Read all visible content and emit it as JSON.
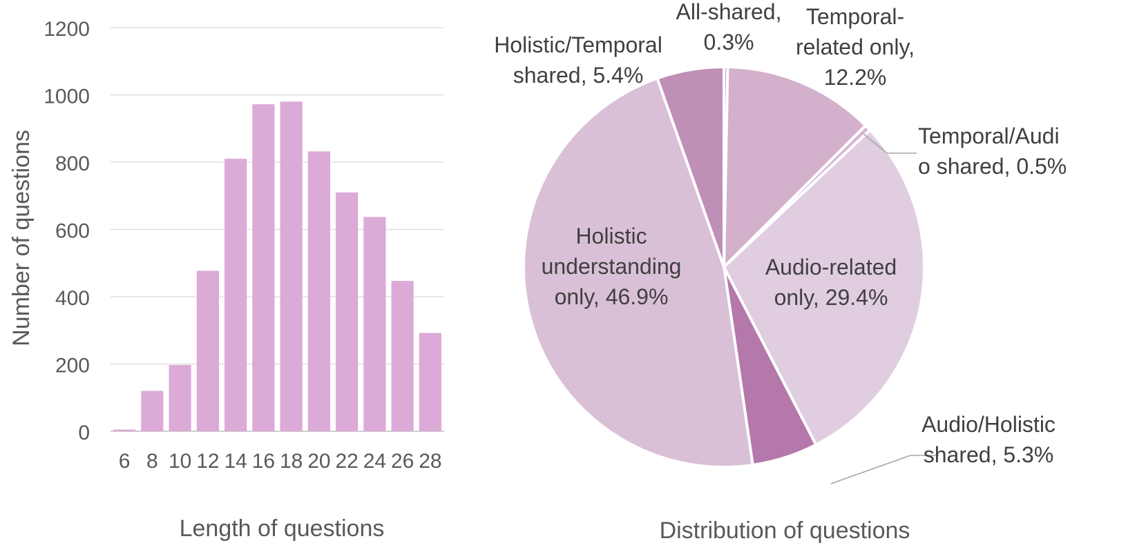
{
  "chart_data": [
    {
      "type": "bar",
      "xlabel": "Length of questions",
      "ylabel": "Number of questions",
      "categories": [
        "6",
        "8",
        "10",
        "12",
        "14",
        "16",
        "18",
        "20",
        "22",
        "24",
        "26",
        "28"
      ],
      "values": [
        5,
        120,
        197,
        477,
        810,
        972,
        980,
        832,
        710,
        637,
        447,
        292
      ],
      "ylim": [
        0,
        1200
      ],
      "yticks": [
        "0",
        "200",
        "400",
        "600",
        "800",
        "1000",
        "1200"
      ],
      "grid": true,
      "bar_color": "#dcaad6"
    },
    {
      "type": "pie",
      "xlabel": "Distribution of questions",
      "start": "top",
      "direction": "clockwise",
      "slices": [
        {
          "label": "All-shared, 0.3%",
          "value": 0.3,
          "color": "#cca0c4"
        },
        {
          "label": "Temporal-related only, 12.2%",
          "value": 12.2,
          "color": "#d3b0cb"
        },
        {
          "label": "Temporal/Audio shared, 0.5%",
          "value": 0.5,
          "color": "#d6b7d0"
        },
        {
          "label": "Audio-related only, 29.4%",
          "value": 29.4,
          "color": "#e0cde0"
        },
        {
          "label": "Audio/Holistic shared, 5.3%",
          "value": 5.3,
          "color": "#b578aa"
        },
        {
          "label": "Holistic understanding only, 46.9%",
          "value": 46.9,
          "color": "#d9c0d6"
        },
        {
          "label": "Holistic/Temporal shared, 5.4%",
          "value": 5.4,
          "color": "#bf8fb7"
        }
      ],
      "label_lines": {
        "all_shared": [
          "All-shared,",
          "0.3%"
        ],
        "temporal_only": [
          "Temporal-",
          "related only,",
          "12.2%"
        ],
        "temporal_audio": [
          "Temporal/Audi",
          "o shared, 0.5%"
        ],
        "audio_only": [
          "Audio-related",
          "only, 29.4%"
        ],
        "audio_holistic": [
          "Audio/Holistic",
          "shared, 5.3%"
        ],
        "holistic_only": [
          "Holistic",
          "understanding",
          "only, 46.9%"
        ],
        "holistic_temporal": [
          "Holistic/Temporal",
          "shared, 5.4%"
        ]
      }
    }
  ]
}
